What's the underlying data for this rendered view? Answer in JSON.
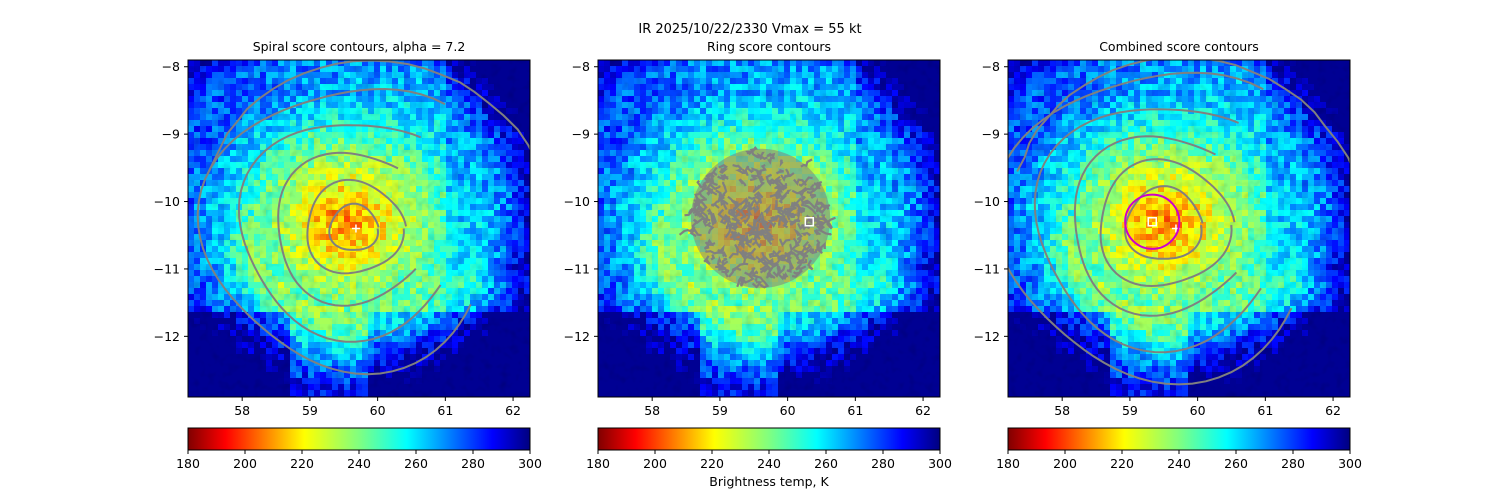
{
  "figure": {
    "suptitle": "IR  2025/10/22/2330    Vmax = 55 kt",
    "colorbar_label": "Brightness temp, K"
  },
  "colors": {
    "contour": "#808080",
    "ring": "#cc00cc",
    "marker": "#ffffff",
    "colormap": "jet_r"
  },
  "chart_data": [
    {
      "type": "heatmap",
      "title": "Spiral score contours, alpha =  7.2",
      "x_ticks": [
        "58",
        "59",
        "60",
        "61",
        "62"
      ],
      "y_ticks": [
        "−8",
        "−9",
        "−10",
        "−11",
        "−12"
      ],
      "xlim": [
        57.2,
        62.25
      ],
      "ylim": [
        -12.9,
        -7.9
      ],
      "center": [
        59.65,
        -10.4
      ],
      "markers": [
        {
          "kind": "plus",
          "lon": 59.68,
          "lat": -10.4
        }
      ],
      "contours": "spiral",
      "colorbar": {
        "ticks": [
          "180",
          "200",
          "220",
          "240",
          "260",
          "280",
          "300"
        ],
        "range": [
          180,
          300
        ]
      }
    },
    {
      "type": "heatmap",
      "title": "Ring score contours",
      "x_ticks": [
        "58",
        "59",
        "60",
        "61",
        "62"
      ],
      "y_ticks": [
        "−8",
        "−9",
        "−10",
        "−11",
        "−12"
      ],
      "xlim": [
        57.2,
        62.25
      ],
      "ylim": [
        -12.9,
        -7.9
      ],
      "center": [
        59.65,
        -10.4
      ],
      "markers": [
        {
          "kind": "square",
          "lon": 60.32,
          "lat": -10.3
        }
      ],
      "contours": "ring",
      "ring_region": {
        "lon": 59.6,
        "lat": -10.25,
        "radius_deg": 1.05
      },
      "colorbar": {
        "ticks": [
          "180",
          "200",
          "220",
          "240",
          "260",
          "280",
          "300"
        ],
        "range": [
          180,
          300
        ]
      }
    },
    {
      "type": "heatmap",
      "title": "Combined score contours",
      "x_ticks": [
        "58",
        "59",
        "60",
        "61",
        "62"
      ],
      "y_ticks": [
        "−8",
        "−9",
        "−10",
        "−11",
        "−12"
      ],
      "xlim": [
        57.2,
        62.25
      ],
      "ylim": [
        -12.9,
        -7.9
      ],
      "center": [
        59.5,
        -10.35
      ],
      "markers": [
        {
          "kind": "square",
          "lon": 59.33,
          "lat": -10.3
        },
        {
          "kind": "plus",
          "lon": 59.68,
          "lat": -10.4
        },
        {
          "kind": "circle",
          "lon": 59.33,
          "lat": -10.3,
          "radius_deg": 0.4
        }
      ],
      "contours": "combined",
      "colorbar": {
        "ticks": [
          "180",
          "200",
          "220",
          "240",
          "260",
          "280",
          "300"
        ],
        "range": [
          180,
          300
        ]
      }
    }
  ]
}
